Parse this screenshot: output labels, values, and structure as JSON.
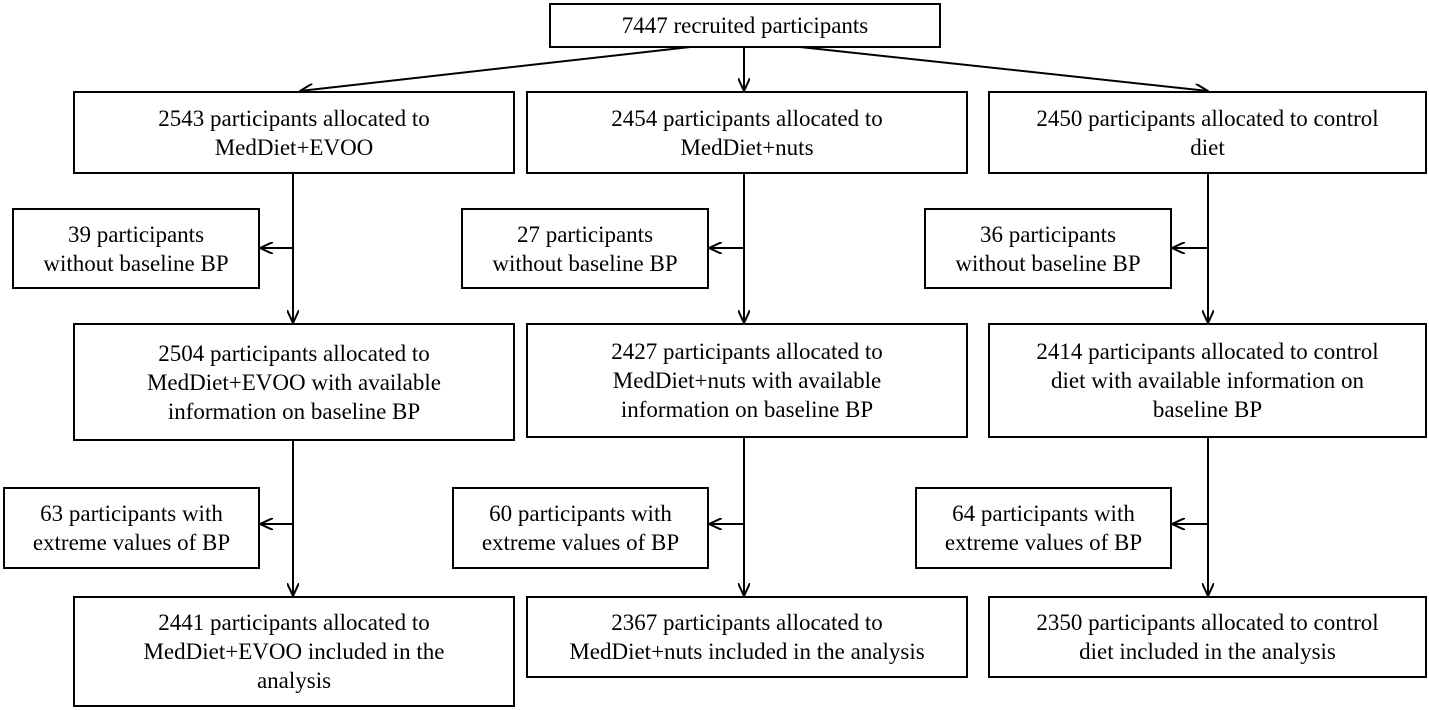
{
  "flowchart": {
    "recruited": [
      "7447 recruited participants"
    ],
    "arms": [
      {
        "allocated": [
          "2543 participants allocated to",
          "MedDiet+EVOO"
        ],
        "excluded_bp": [
          "39 participants",
          "without baseline BP"
        ],
        "with_bp": [
          "2504 participants allocated to",
          "MedDiet+EVOO with available",
          "information on baseline BP"
        ],
        "excluded_extreme": [
          "63 participants with",
          "extreme values of BP"
        ],
        "analyzed": [
          "2441 participants allocated to",
          "MedDiet+EVOO included in the",
          "analysis"
        ]
      },
      {
        "allocated": [
          "2454 participants allocated to",
          "MedDiet+nuts"
        ],
        "excluded_bp": [
          "27 participants",
          "without baseline BP"
        ],
        "with_bp": [
          "2427 participants allocated to",
          "MedDiet+nuts with available",
          "information on baseline BP"
        ],
        "excluded_extreme": [
          "60 participants with",
          "extreme values of BP"
        ],
        "analyzed": [
          "2367 participants allocated to",
          "MedDiet+nuts included in the analysis"
        ]
      },
      {
        "allocated": [
          "2450 participants allocated to control",
          "diet"
        ],
        "excluded_bp": [
          "36 participants",
          "without baseline BP"
        ],
        "with_bp": [
          "2414 participants allocated to control",
          "diet with available information on",
          "baseline BP"
        ],
        "excluded_extreme": [
          "64 participants with",
          "extreme values of BP"
        ],
        "analyzed": [
          "2350 participants allocated to control",
          "diet included in the analysis"
        ]
      }
    ]
  }
}
